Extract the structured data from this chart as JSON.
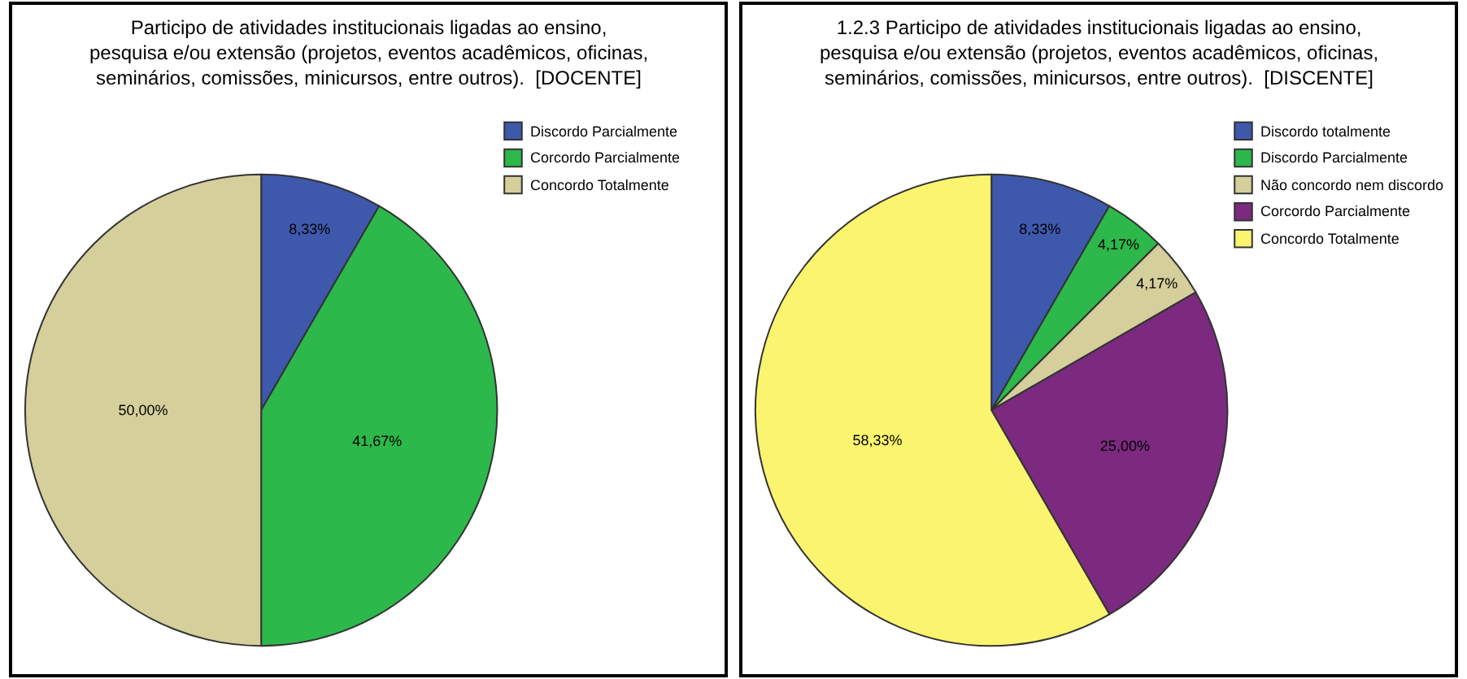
{
  "chart_data": [
    {
      "type": "pie",
      "title": "Participo de atividades institucionais ligadas ao ensino,\npesquisa e/ou extensão (projetos, eventos acadêmicos, oficinas,\nseminários, comissões, minicursos, entre outros).  [DOCENTE]",
      "categories": [
        "Discordo Parcialmente",
        "Corcordo Parcialmente",
        "Concordo Totalmente"
      ],
      "values": [
        8.33,
        41.67,
        50.0
      ],
      "value_labels": [
        "8,33%",
        "41,67%",
        "50,00%"
      ],
      "colors": [
        "#3e58ac",
        "#2db84b",
        "#d4cf9b"
      ],
      "legend": "top right"
    },
    {
      "type": "pie",
      "title": "1.2.3 Participo de atividades institucionais ligadas ao ensino,\npesquisa e/ou extensão (projetos, eventos acadêmicos, oficinas,\nseminários, comissões, minicursos, entre outros).  [DISCENTE]",
      "categories": [
        "Discordo totalmente",
        "Discordo Parcialmente",
        "Não concordo nem discordo",
        "Corcordo Parcialmente",
        "Concordo Totalmente"
      ],
      "values": [
        8.33,
        4.17,
        4.17,
        25.0,
        58.33
      ],
      "value_labels": [
        "8,33%",
        "4,17%",
        "4,17%",
        "25,00%",
        "58,33%"
      ],
      "colors": [
        "#3e58ac",
        "#2db84b",
        "#d4cf9b",
        "#7b2a7f",
        "#fbf46f"
      ],
      "legend": "top right"
    }
  ]
}
